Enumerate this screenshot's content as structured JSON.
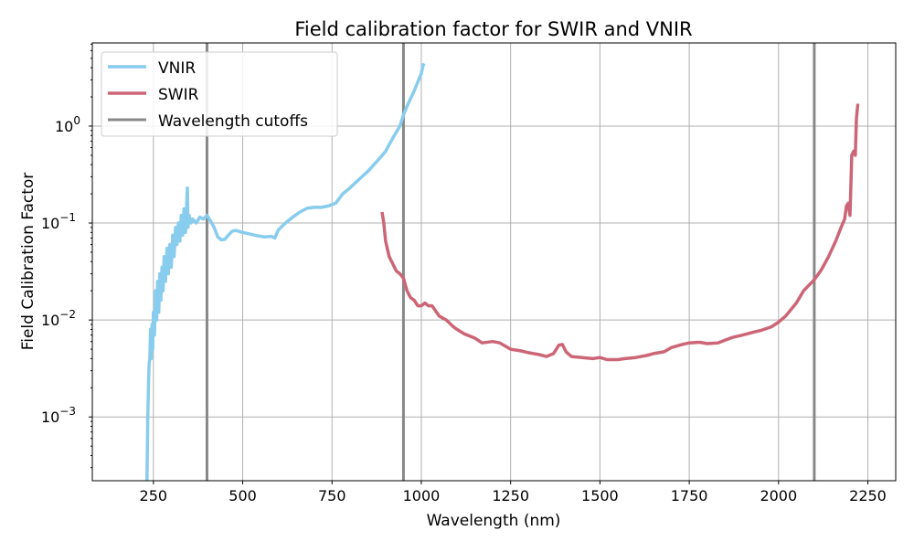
{
  "chart_data": {
    "type": "line",
    "title": "Field calibration factor for SWIR and VNIR",
    "xlabel": "Wavelength (nm)",
    "ylabel": "Field Calibration Factor",
    "xlim": [
      79,
      2328
    ],
    "ylim": [
      0.00022,
      7.2
    ],
    "yscale": "log",
    "grid": true,
    "legend_position": "top-left",
    "xticks": [
      250,
      500,
      750,
      1000,
      1250,
      1500,
      1750,
      2000,
      2250
    ],
    "xtick_labels": [
      "250",
      "500",
      "750",
      "1000",
      "1250",
      "1500",
      "1750",
      "2000",
      "2250"
    ],
    "yticks": [
      0.001,
      0.01,
      0.1,
      1
    ],
    "ytick_labels": [
      "10^-3",
      "10^-2",
      "10^-1",
      "10^0"
    ],
    "series": [
      {
        "name": "VNIR",
        "color": "#88CCEE",
        "x": [
          232,
          234,
          236,
          238,
          240,
          242,
          244,
          246,
          248,
          250,
          253,
          256,
          259,
          262,
          265,
          268,
          271,
          274,
          277,
          280,
          284,
          288,
          292,
          296,
          300,
          304,
          308,
          312,
          316,
          320,
          324,
          328,
          332,
          336,
          340,
          343,
          345,
          347,
          350,
          355,
          360,
          370,
          380,
          390,
          400,
          410,
          420,
          430,
          440,
          450,
          460,
          470,
          480,
          490,
          500,
          520,
          540,
          560,
          580,
          590,
          600,
          620,
          640,
          660,
          680,
          700,
          720,
          740,
          760,
          780,
          800,
          820,
          850,
          880,
          900,
          920,
          940,
          950,
          960,
          980,
          1000,
          1005,
          1010
        ],
        "y": [
          0.00022,
          0.0009,
          0.002,
          0.0035,
          0.004,
          0.008,
          0.004,
          0.009,
          0.005,
          0.012,
          0.007,
          0.02,
          0.01,
          0.025,
          0.012,
          0.03,
          0.016,
          0.035,
          0.02,
          0.045,
          0.025,
          0.055,
          0.03,
          0.06,
          0.035,
          0.075,
          0.045,
          0.09,
          0.06,
          0.1,
          0.065,
          0.12,
          0.075,
          0.14,
          0.08,
          0.15,
          0.23,
          0.09,
          0.12,
          0.1,
          0.11,
          0.1,
          0.115,
          0.11,
          0.12,
          0.105,
          0.09,
          0.072,
          0.067,
          0.068,
          0.075,
          0.082,
          0.084,
          0.082,
          0.08,
          0.077,
          0.074,
          0.072,
          0.073,
          0.07,
          0.085,
          0.1,
          0.115,
          0.13,
          0.142,
          0.145,
          0.145,
          0.15,
          0.16,
          0.2,
          0.23,
          0.27,
          0.34,
          0.45,
          0.55,
          0.75,
          1.0,
          1.3,
          1.6,
          2.3,
          3.5,
          4.3,
          4.2
        ]
      },
      {
        "name": "SWIR",
        "color": "#CC6677",
        "x": [
          890,
          895,
          900,
          910,
          920,
          930,
          940,
          950,
          960,
          970,
          980,
          990,
          1000,
          1010,
          1020,
          1030,
          1050,
          1070,
          1090,
          1100,
          1120,
          1150,
          1170,
          1200,
          1220,
          1250,
          1280,
          1300,
          1330,
          1350,
          1370,
          1385,
          1395,
          1405,
          1420,
          1450,
          1480,
          1500,
          1520,
          1550,
          1570,
          1600,
          1630,
          1650,
          1680,
          1700,
          1730,
          1750,
          1780,
          1800,
          1830,
          1850,
          1870,
          1900,
          1930,
          1950,
          1980,
          2000,
          2020,
          2050,
          2070,
          2100,
          2120,
          2140,
          2160,
          2175,
          2185,
          2190,
          2195,
          2200,
          2205,
          2210,
          2215,
          2218,
          2222
        ],
        "y": [
          0.13,
          0.1,
          0.065,
          0.045,
          0.038,
          0.032,
          0.03,
          0.027,
          0.02,
          0.017,
          0.016,
          0.014,
          0.014,
          0.015,
          0.014,
          0.014,
          0.011,
          0.01,
          0.0085,
          0.008,
          0.0072,
          0.0065,
          0.0058,
          0.006,
          0.0058,
          0.005,
          0.0048,
          0.0046,
          0.0044,
          0.0042,
          0.0045,
          0.0055,
          0.0056,
          0.0047,
          0.0042,
          0.0041,
          0.004,
          0.0041,
          0.0039,
          0.0039,
          0.004,
          0.0041,
          0.0043,
          0.0045,
          0.0047,
          0.0052,
          0.0056,
          0.0058,
          0.0059,
          0.0057,
          0.0058,
          0.0062,
          0.0066,
          0.007,
          0.0075,
          0.0078,
          0.0085,
          0.0095,
          0.011,
          0.015,
          0.02,
          0.026,
          0.033,
          0.045,
          0.065,
          0.09,
          0.11,
          0.15,
          0.16,
          0.12,
          0.5,
          0.55,
          0.5,
          1.2,
          1.7
        ]
      }
    ],
    "vlines": {
      "name": "Wavelength cutoffs",
      "color": "#888888",
      "x": [
        400,
        950,
        2100
      ]
    }
  }
}
